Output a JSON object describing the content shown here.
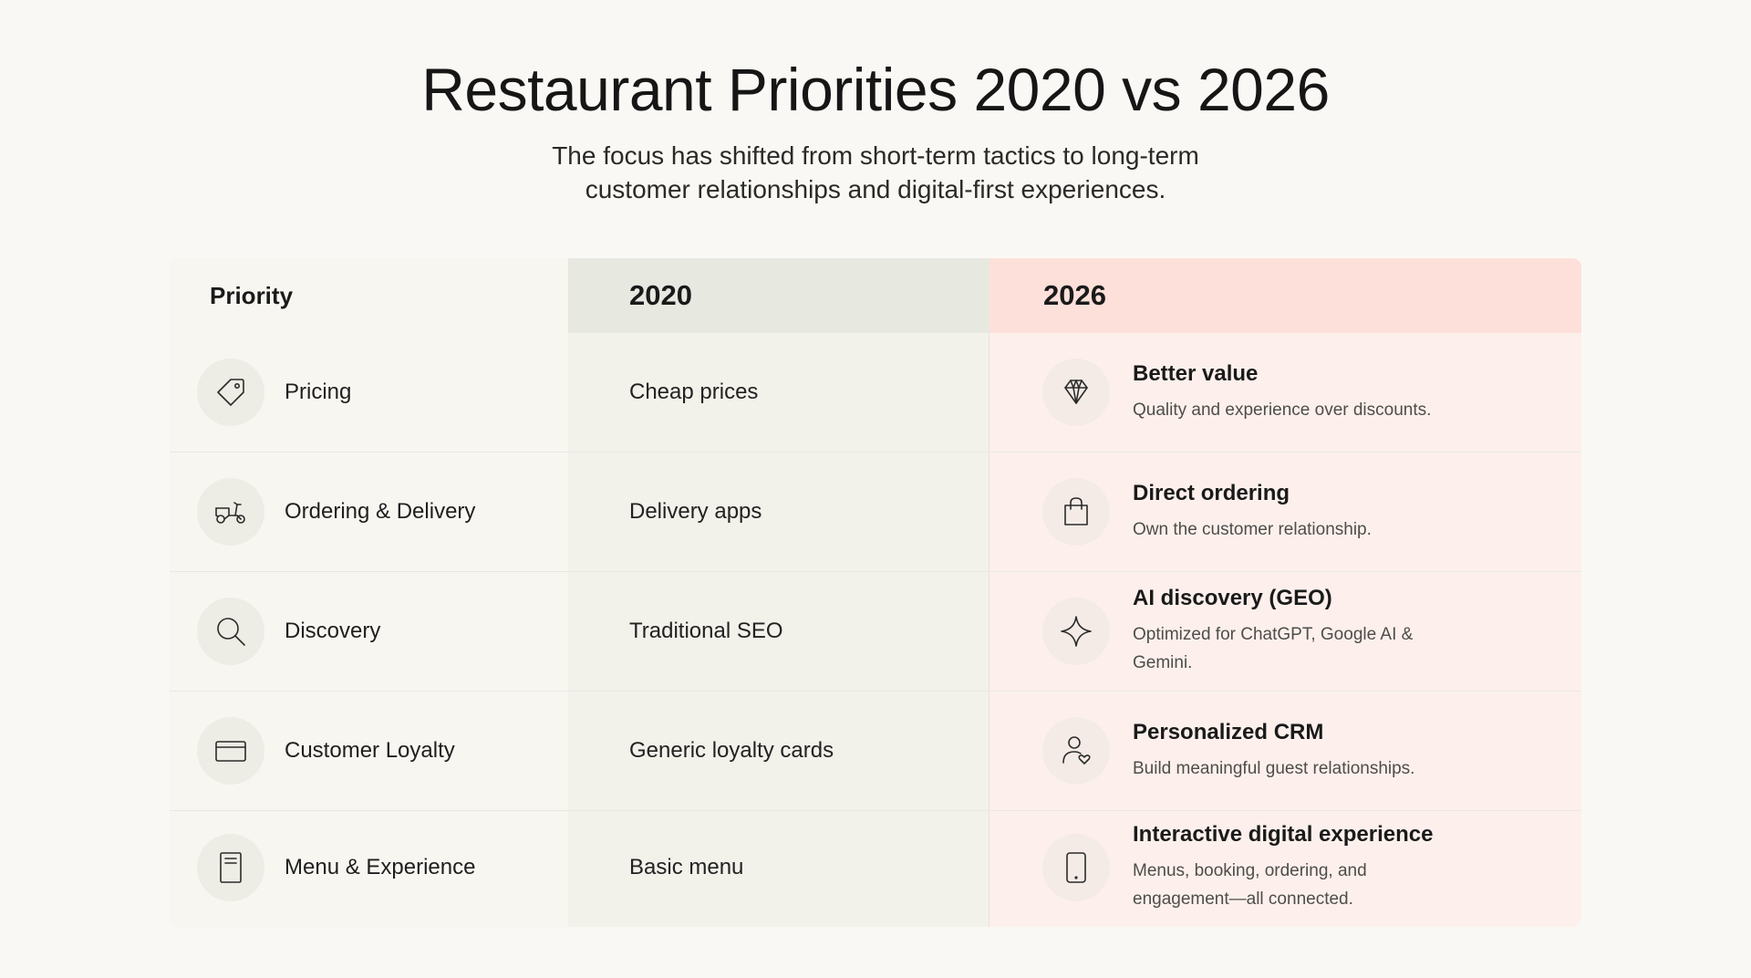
{
  "header": {
    "title": "Restaurant Priorities 2020 vs 2026",
    "subtitle_line1": "The focus has shifted from short-term tactics to long-term",
    "subtitle_line2": "customer relationships and digital-first experiences."
  },
  "table": {
    "columns": [
      "Priority",
      "2020",
      "2026"
    ],
    "rows": [
      {
        "priority": "Pricing",
        "priority_icon": "price-tag-icon",
        "y2020": "Cheap prices",
        "y2026_title": "Better value",
        "y2026_desc": "Quality and experience over discounts.",
        "y2026_icon": "diamond-icon"
      },
      {
        "priority": "Ordering & Delivery",
        "priority_icon": "scooter-icon",
        "y2020": "Delivery apps",
        "y2026_title": "Direct ordering",
        "y2026_desc": "Own the customer relationship.",
        "y2026_icon": "shopping-bag-icon"
      },
      {
        "priority": "Discovery",
        "priority_icon": "search-icon",
        "y2020": "Traditional SEO",
        "y2026_title": "AI discovery (GEO)",
        "y2026_desc": "Optimized for ChatGPT, Google AI & Gemini.",
        "y2026_icon": "sparkle-icon"
      },
      {
        "priority": "Customer Loyalty",
        "priority_icon": "card-icon",
        "y2020": "Generic loyalty cards",
        "y2026_title": "Personalized CRM",
        "y2026_desc": "Build meaningful guest relationships.",
        "y2026_icon": "person-heart-icon"
      },
      {
        "priority": "Menu & Experience",
        "priority_icon": "menu-icon",
        "y2020": "Basic menu",
        "y2026_title": "Interactive digital experience",
        "y2026_desc": "Menus, booking, ordering, and engagement—all connected.",
        "y2026_icon": "tablet-icon"
      }
    ]
  },
  "colors": {
    "background": "#faf8f4",
    "col_2020_header": "#e7e9e1",
    "col_2026_header": "#fde0da",
    "col_2026_body": "#fdf0ec"
  }
}
